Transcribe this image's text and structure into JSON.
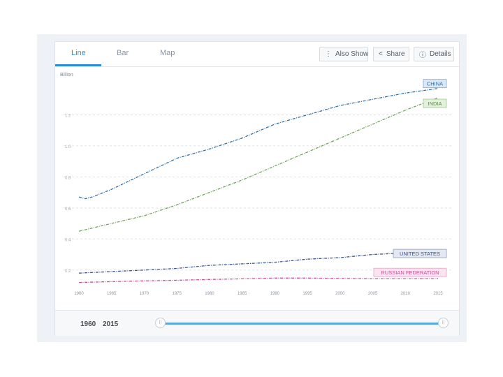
{
  "tabs": [
    {
      "label": "Line",
      "active": true
    },
    {
      "label": "Bar",
      "active": false
    },
    {
      "label": "Map",
      "active": false
    }
  ],
  "toolbar": {
    "also_show": {
      "label": "Also Show",
      "icon": "vertical-dots-icon"
    },
    "share": {
      "label": "Share",
      "icon": "share-icon"
    },
    "details": {
      "label": "Details",
      "icon": "info-icon"
    }
  },
  "footer": {
    "range_start": "1960",
    "range_end": "2015",
    "range_start_handle": "||",
    "range_end_handle": "||"
  },
  "colors": {
    "accent": "#2c8fd6",
    "china": "#2f6ea8",
    "india": "#6fa55c",
    "united_states": "#3c5691",
    "russian_federation": "#cf4f9b"
  },
  "chart_data": {
    "type": "line",
    "ylabel": "Billion",
    "x": [
      1960,
      1965,
      1970,
      1975,
      1980,
      1985,
      1990,
      1995,
      2000,
      2005,
      2010,
      2015
    ],
    "xticks": [
      "1960",
      "1965",
      "1970",
      "1975",
      "1980",
      "1985",
      "1990",
      "1995",
      "2000",
      "2005",
      "2010",
      "2015"
    ],
    "yticks": [
      "0.2",
      "0.4",
      "0.6",
      "0.8",
      "1.0",
      "1.2"
    ],
    "ytick_values": [
      0.2,
      0.4,
      0.6,
      0.8,
      1.0,
      1.2
    ],
    "ylim": [
      0.1,
      1.4
    ],
    "xlim": [
      1960,
      2015
    ],
    "grid": true,
    "legend": "end-of-line labels",
    "series": [
      {
        "name": "CHINA",
        "color": "#2f6ea8",
        "x": [
          1960,
          1961,
          1962,
          1965,
          1970,
          1975,
          1980,
          1985,
          1990,
          1995,
          2000,
          2005,
          2010,
          2015
        ],
        "values": [
          0.67,
          0.66,
          0.67,
          0.72,
          0.82,
          0.92,
          0.98,
          1.05,
          1.14,
          1.2,
          1.26,
          1.3,
          1.34,
          1.37
        ]
      },
      {
        "name": "INDIA",
        "color": "#6fa55c",
        "x": [
          1960,
          1965,
          1970,
          1975,
          1980,
          1985,
          1990,
          1995,
          2000,
          2005,
          2010,
          2015
        ],
        "values": [
          0.45,
          0.5,
          0.55,
          0.62,
          0.7,
          0.78,
          0.87,
          0.96,
          1.05,
          1.14,
          1.23,
          1.31
        ]
      },
      {
        "name": "UNITED STATES",
        "color": "#3c5691",
        "x": [
          1960,
          1965,
          1970,
          1975,
          1980,
          1985,
          1990,
          1995,
          2000,
          2005,
          2010,
          2015
        ],
        "values": [
          0.18,
          0.19,
          0.2,
          0.21,
          0.23,
          0.24,
          0.25,
          0.27,
          0.28,
          0.3,
          0.31,
          0.32
        ]
      },
      {
        "name": "RUSSIAN FEDERATION",
        "color": "#cf4f9b",
        "x": [
          1960,
          1965,
          1970,
          1975,
          1980,
          1985,
          1990,
          1995,
          2000,
          2005,
          2010,
          2015
        ],
        "values": [
          0.12,
          0.125,
          0.13,
          0.134,
          0.139,
          0.143,
          0.148,
          0.148,
          0.146,
          0.143,
          0.143,
          0.144
        ]
      }
    ]
  }
}
